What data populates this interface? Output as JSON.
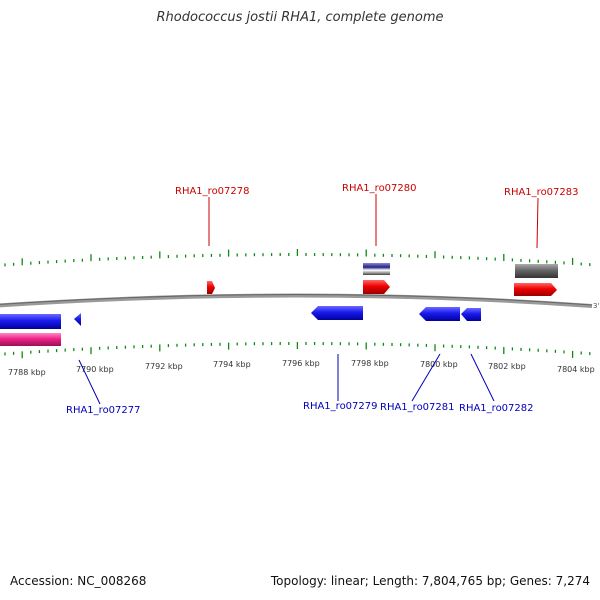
{
  "title": "Rhodococcus jostii RHA1, complete genome",
  "accession": "Accession: NC_008268",
  "topology": "Topology: linear; Length: 7,804,765 bp; Genes: 7,274",
  "genome_end_label": "3'",
  "colors": {
    "forward_gene": "#ee0000",
    "reverse_gene": "#1a1aee",
    "rna": "#ee2288",
    "other": "#555555",
    "scale_tick": "#118811",
    "backbone": "#888888"
  },
  "scale": {
    "unit": "kbp",
    "labels": [
      "7788 kbp",
      "7790 kbp",
      "7792 kbp",
      "7794 kbp",
      "7796 kbp",
      "7798 kbp",
      "7800 kbp",
      "7802 kbp",
      "7804 kbp"
    ]
  },
  "genes_forward": [
    {
      "name": "RHA1_ro07278"
    },
    {
      "name": "RHA1_ro07280"
    },
    {
      "name": "RHA1_ro07283"
    }
  ],
  "genes_reverse": [
    {
      "name": "RHA1_ro07277"
    },
    {
      "name": "RHA1_ro07279"
    },
    {
      "name": "RHA1_ro07281"
    },
    {
      "name": "RHA1_ro07282"
    }
  ]
}
